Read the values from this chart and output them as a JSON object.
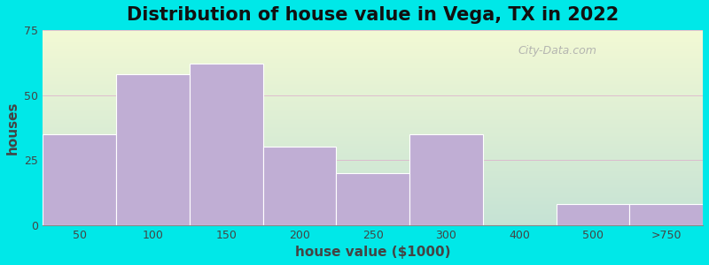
{
  "title": "Distribution of house value in Vega, TX in 2022",
  "xlabel": "house value ($1000)",
  "ylabel": "houses",
  "categories": [
    "50",
    "100",
    "150",
    "200",
    "250",
    "300",
    "400",
    "500",
    ">750"
  ],
  "values": [
    35,
    58,
    62,
    30,
    20,
    35,
    0,
    8,
    8
  ],
  "bar_color": "#c0aed4",
  "bar_edgecolor": "#ffffff",
  "ylim": [
    0,
    75
  ],
  "yticks": [
    0,
    25,
    50,
    75
  ],
  "bg_outer": "#00e8e8",
  "title_fontsize": 15,
  "axis_label_fontsize": 11,
  "tick_fontsize": 9,
  "grid_color": "#ddaacc",
  "grid_linewidth": 0.5,
  "watermark": "City-Data.com"
}
